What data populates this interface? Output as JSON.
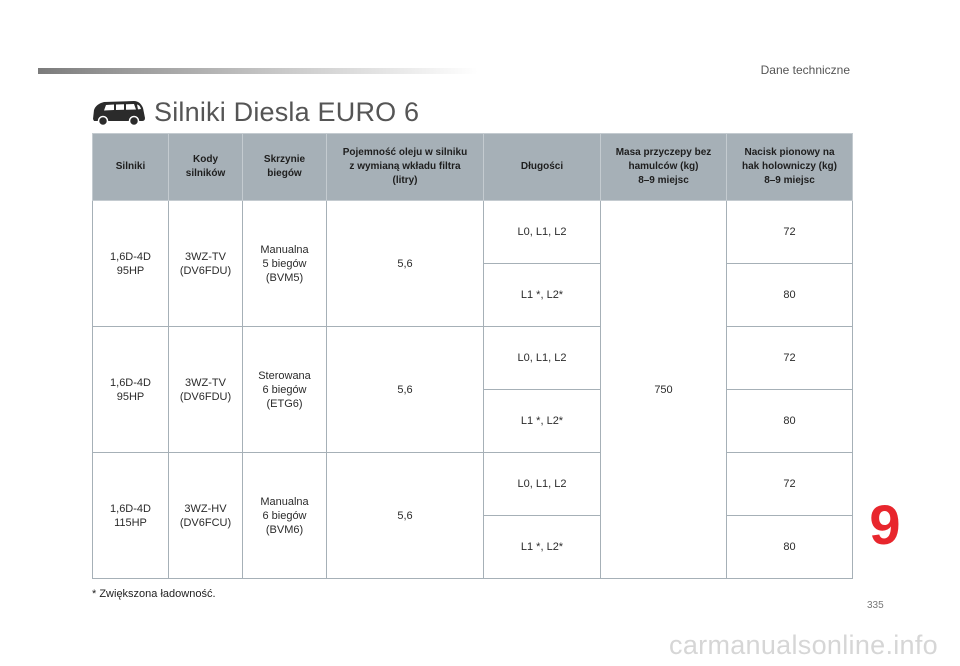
{
  "header": {
    "section": "Dane techniczne"
  },
  "title": "Silniki Diesla EURO 6",
  "table": {
    "headers": [
      "Silniki",
      "Kody\nsilników",
      "Skrzynie\nbiegów",
      "Pojemność oleju w silniku\nz wymianą wkładu filtra\n(litry)",
      "Długości",
      "Masa przyczepy bez\nhamulców (kg)\n8–9 miejsc",
      "Nacisk pionowy na\nhak holowniczy (kg)\n8–9 miejsc"
    ],
    "groups": [
      {
        "engine": "1,6D-4D\n95HP",
        "code": "3WZ-TV\n(DV6FDU)",
        "gearbox": "Manualna\n5 biegów\n(BVM5)",
        "oil": "5,6",
        "rows": [
          {
            "length": "L0, L1, L2",
            "nacisk": "72"
          },
          {
            "length": "L1 *, L2*",
            "nacisk": "80"
          }
        ]
      },
      {
        "engine": "1,6D-4D\n95HP",
        "code": "3WZ-TV\n(DV6FDU)",
        "gearbox": "Sterowana\n6 biegów\n(ETG6)",
        "oil": "5,6",
        "rows": [
          {
            "length": "L0, L1, L2",
            "nacisk": "72"
          },
          {
            "length": "L1 *, L2*",
            "nacisk": "80"
          }
        ]
      },
      {
        "engine": "1,6D-4D\n115HP",
        "code": "3WZ-HV\n(DV6FCU)",
        "gearbox": "Manualna\n6 biegów\n(BVM6)",
        "oil": "5,6",
        "rows": [
          {
            "length": "L0, L1, L2",
            "nacisk": "72"
          },
          {
            "length": "L1 *, L2*",
            "nacisk": "80"
          }
        ]
      }
    ],
    "masa": "750"
  },
  "footnote": "* Zwiększona ładowność.",
  "chapter": "9",
  "page_number": "335",
  "watermark": "carmanualsonline.info",
  "colors": {
    "header_bg": "#a6b0b7",
    "chapter": "#e8262d"
  }
}
